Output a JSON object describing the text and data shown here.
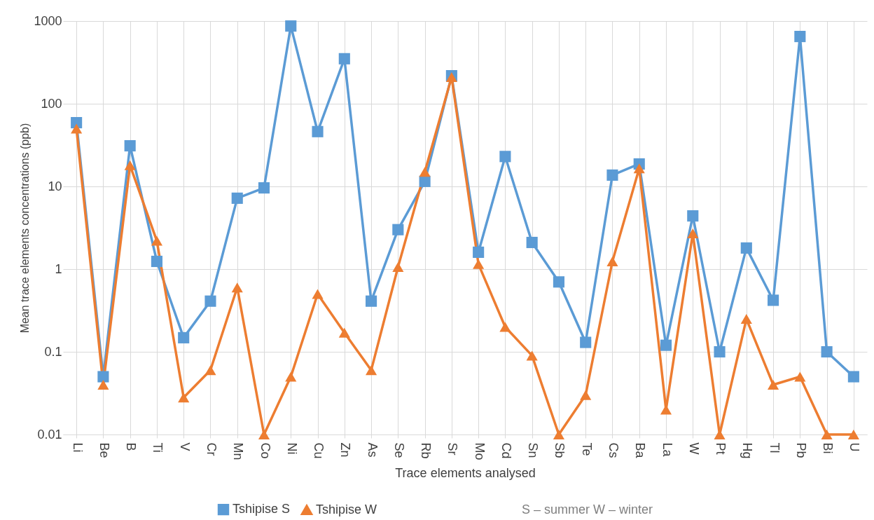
{
  "chart_data": {
    "type": "line",
    "xlabel": "Trace elements analysed",
    "ylabel": "Mean trace elements concentrations (ppb)",
    "categories": [
      "Li",
      "Be",
      "B",
      "Ti",
      "V",
      "Cr",
      "Mn",
      "Co",
      "Ni",
      "Cu",
      "Zn",
      "As",
      "Se",
      "Rb",
      "Sr",
      "Mo",
      "Cd",
      "Sn",
      "Sb",
      "Te",
      "Cs",
      "Ba",
      "La",
      "W",
      "Pt",
      "Hg",
      "Tl",
      "Pb",
      "Bi",
      "U"
    ],
    "series": [
      {
        "name": "Tshipise S",
        "color": "#5b9bd5",
        "marker": "square",
        "values": [
          59,
          0.05,
          31,
          1.24,
          0.148,
          0.41,
          7.2,
          9.6,
          870,
          46,
          350,
          0.41,
          3.0,
          11.5,
          218,
          1.6,
          23,
          2.1,
          0.7,
          0.13,
          13.7,
          18.7,
          0.12,
          4.4,
          0.1,
          1.8,
          0.42,
          650,
          0.1,
          0.05
        ]
      },
      {
        "name": "Tshipise W",
        "color": "#ed7d31",
        "marker": "triangle",
        "values": [
          50,
          0.04,
          18,
          2.2,
          0.028,
          0.06,
          0.6,
          0.01,
          0.05,
          0.5,
          0.17,
          0.06,
          1.06,
          15,
          210,
          1.15,
          0.2,
          0.09,
          0.01,
          0.03,
          1.24,
          16.5,
          0.02,
          2.7,
          0.01,
          0.25,
          0.04,
          0.05,
          0.01,
          0.01
        ]
      }
    ],
    "log": "y",
    "ylim": [
      0.01,
      1000
    ],
    "yticks": [
      0.01,
      0.1,
      1,
      10,
      100,
      1000
    ],
    "grid": true,
    "legend": "bottom",
    "line_style": "solid",
    "annotations": [
      "S – summer     W – winter"
    ]
  }
}
